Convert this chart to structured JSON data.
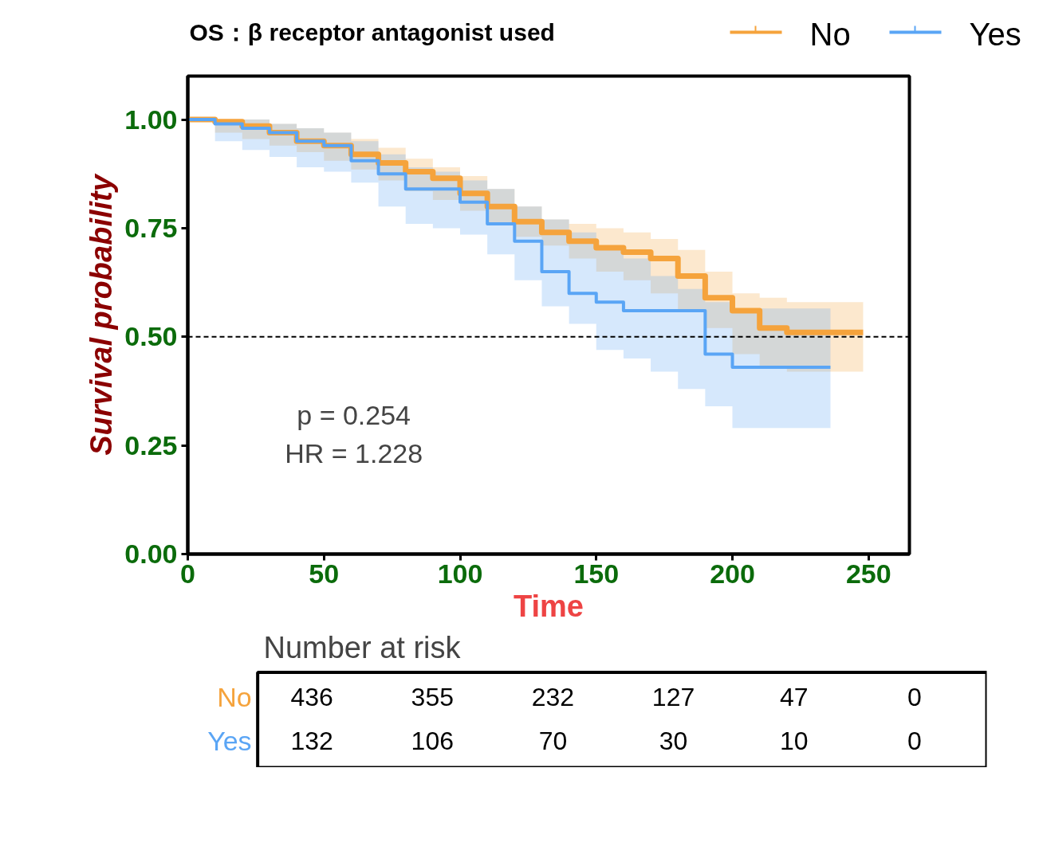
{
  "chart_data": [
    {
      "type": "step",
      "title": "OS：β receptor antagonist used",
      "xlabel": "Time",
      "ylabel": "Survival probability",
      "xlim": [
        0,
        265
      ],
      "ylim": [
        0,
        1.1
      ],
      "xticks": [
        0,
        50,
        100,
        150,
        200,
        250
      ],
      "yticks": [
        {
          "value": 0,
          "label": "0.00"
        },
        {
          "value": 0.25,
          "label": "0.25"
        },
        {
          "value": 0.5,
          "label": "0.50"
        },
        {
          "value": 0.75,
          "label": "0.75"
        },
        {
          "value": 1,
          "label": "1.00"
        }
      ],
      "grid": false,
      "legend": "top right",
      "ref_lines": [
        {
          "axis": "y",
          "value": 0.5,
          "line_style": "dashed",
          "color": "#000000"
        }
      ],
      "annotations": [
        "p = 0.254",
        "HR = 1.228"
      ],
      "series": [
        {
          "name": "No",
          "color": "#f5a33c",
          "x": [
            0,
            10,
            20,
            30,
            40,
            50,
            60,
            70,
            80,
            90,
            100,
            110,
            120,
            130,
            140,
            150,
            160,
            170,
            180,
            190,
            200,
            210,
            220,
            230,
            240,
            248
          ],
          "values": [
            1.0,
            0.995,
            0.985,
            0.97,
            0.95,
            0.94,
            0.92,
            0.9,
            0.88,
            0.865,
            0.83,
            0.8,
            0.765,
            0.74,
            0.72,
            0.705,
            0.695,
            0.68,
            0.64,
            0.59,
            0.56,
            0.52,
            0.51,
            0.51,
            0.51,
            0.51
          ],
          "lower": [
            1.0,
            0.97,
            0.955,
            0.94,
            0.925,
            0.905,
            0.885,
            0.86,
            0.835,
            0.815,
            0.79,
            0.76,
            0.73,
            0.71,
            0.68,
            0.65,
            0.63,
            0.6,
            0.56,
            0.52,
            0.46,
            0.43,
            0.42,
            0.42,
            0.42,
            0.42
          ],
          "upper": [
            1.0,
            1.0,
            1.0,
            0.99,
            0.98,
            0.97,
            0.955,
            0.935,
            0.91,
            0.89,
            0.87,
            0.84,
            0.8,
            0.77,
            0.76,
            0.75,
            0.74,
            0.725,
            0.7,
            0.65,
            0.6,
            0.59,
            0.58,
            0.58,
            0.58,
            0.58
          ]
        },
        {
          "name": "Yes",
          "color": "#5aa5f5",
          "x": [
            0,
            10,
            20,
            30,
            40,
            50,
            60,
            70,
            80,
            90,
            100,
            110,
            120,
            130,
            140,
            150,
            160,
            170,
            180,
            190,
            200,
            210,
            220,
            230,
            236
          ],
          "values": [
            1.0,
            0.99,
            0.98,
            0.97,
            0.95,
            0.94,
            0.905,
            0.875,
            0.84,
            0.84,
            0.81,
            0.76,
            0.72,
            0.65,
            0.6,
            0.58,
            0.56,
            0.56,
            0.56,
            0.46,
            0.43,
            0.43,
            0.43,
            0.43,
            0.43
          ],
          "lower": [
            1.0,
            0.95,
            0.93,
            0.914,
            0.89,
            0.88,
            0.855,
            0.8,
            0.76,
            0.75,
            0.735,
            0.69,
            0.63,
            0.57,
            0.53,
            0.47,
            0.45,
            0.42,
            0.38,
            0.34,
            0.29,
            0.29,
            0.29,
            0.29,
            0.29
          ],
          "upper": [
            1.0,
            1.0,
            1.0,
            0.99,
            0.98,
            0.97,
            0.95,
            0.92,
            0.89,
            0.88,
            0.86,
            0.84,
            0.8,
            0.77,
            0.74,
            0.7,
            0.68,
            0.64,
            0.61,
            0.58,
            0.565,
            0.565,
            0.565,
            0.565,
            0.565
          ]
        }
      ]
    },
    {
      "type": "heatmap",
      "title": "Number at risk",
      "categories": [
        null,
        null,
        null,
        null,
        null,
        null
      ],
      "y_categories": [
        "No",
        "Yes"
      ],
      "colors": [
        "#f5a33c",
        "#5aa5f5"
      ],
      "data_labels": true,
      "cells": [
        [
          436,
          355,
          232,
          127,
          47,
          0
        ],
        [
          132,
          106,
          70,
          30,
          10,
          0
        ]
      ]
    }
  ]
}
